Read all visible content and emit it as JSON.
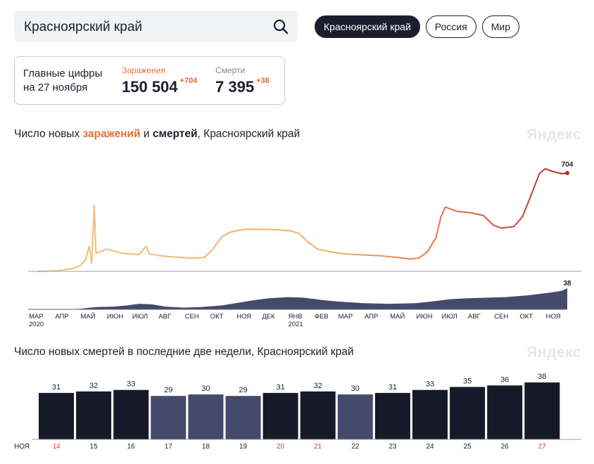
{
  "search": {
    "value": "Красноярский край"
  },
  "chips": [
    {
      "label": "Красноярский край",
      "active": true
    },
    {
      "label": "Россия",
      "active": false
    },
    {
      "label": "Мир",
      "active": false
    }
  ],
  "summary": {
    "line1": "Главные цифры",
    "line2": "на 27 ноября",
    "infections": {
      "caption": "Заражения",
      "value": "150 504",
      "delta": "+704"
    },
    "deaths": {
      "caption": "Смерти",
      "value": "7 395",
      "delta": "+38"
    }
  },
  "chart1": {
    "title_prefix": "Число новых ",
    "title_inf": "заражений",
    "title_mid": " и ",
    "title_deaths": "смертей",
    "title_suffix": ", Красноярский край",
    "watermark": "Яндекс"
  },
  "chart2": {
    "title": "Число новых смертей в последние две недели, Красноярский край",
    "watermark": "Яндекс"
  },
  "chart_data": [
    {
      "type": "area",
      "series": [
        {
          "name": "заражений",
          "color_start": "#f3c27c",
          "color_end": "#b0302a",
          "last_label": "704",
          "points": [
            [
              "2020-03-12",
              0
            ],
            [
              "2020-03-25",
              2
            ],
            [
              "2020-04-05",
              5
            ],
            [
              "2020-04-15",
              14
            ],
            [
              "2020-04-22",
              20
            ],
            [
              "2020-05-01",
              40
            ],
            [
              "2020-05-08",
              85
            ],
            [
              "2020-05-12",
              180
            ],
            [
              "2020-05-15",
              60
            ],
            [
              "2020-05-18",
              470
            ],
            [
              "2020-05-20",
              130
            ],
            [
              "2020-05-25",
              140
            ],
            [
              "2020-06-01",
              160
            ],
            [
              "2020-06-10",
              145
            ],
            [
              "2020-06-20",
              130
            ],
            [
              "2020-07-01",
              125
            ],
            [
              "2020-07-10",
              120
            ],
            [
              "2020-07-18",
              180
            ],
            [
              "2020-07-22",
              125
            ],
            [
              "2020-08-01",
              115
            ],
            [
              "2020-08-15",
              105
            ],
            [
              "2020-09-01",
              98
            ],
            [
              "2020-09-15",
              95
            ],
            [
              "2020-09-25",
              100
            ],
            [
              "2020-10-05",
              160
            ],
            [
              "2020-10-15",
              245
            ],
            [
              "2020-10-25",
              280
            ],
            [
              "2020-11-10",
              300
            ],
            [
              "2020-11-25",
              302
            ],
            [
              "2020-12-10",
              300
            ],
            [
              "2020-12-25",
              295
            ],
            [
              "2021-01-05",
              290
            ],
            [
              "2021-01-15",
              270
            ],
            [
              "2021-01-25",
              210
            ],
            [
              "2021-02-05",
              160
            ],
            [
              "2021-02-20",
              140
            ],
            [
              "2021-03-10",
              125
            ],
            [
              "2021-04-01",
              118
            ],
            [
              "2021-04-20",
              112
            ],
            [
              "2021-05-10",
              100
            ],
            [
              "2021-05-25",
              88
            ],
            [
              "2021-06-05",
              95
            ],
            [
              "2021-06-15",
              140
            ],
            [
              "2021-06-25",
              240
            ],
            [
              "2021-07-01",
              390
            ],
            [
              "2021-07-06",
              460
            ],
            [
              "2021-07-20",
              430
            ],
            [
              "2021-08-05",
              420
            ],
            [
              "2021-08-20",
              400
            ],
            [
              "2021-09-01",
              330
            ],
            [
              "2021-09-10",
              310
            ],
            [
              "2021-09-25",
              320
            ],
            [
              "2021-10-05",
              390
            ],
            [
              "2021-10-15",
              540
            ],
            [
              "2021-10-25",
              700
            ],
            [
              "2021-11-01",
              735
            ],
            [
              "2021-11-10",
              715
            ],
            [
              "2021-11-20",
              700
            ],
            [
              "2021-11-27",
              704
            ]
          ]
        },
        {
          "name": "смертей",
          "color": "#454a6b",
          "last_label": "38",
          "points": [
            [
              "2020-03-12",
              0
            ],
            [
              "2020-04-15",
              0
            ],
            [
              "2020-05-01",
              1
            ],
            [
              "2020-05-20",
              4
            ],
            [
              "2020-06-10",
              5
            ],
            [
              "2020-06-25",
              7
            ],
            [
              "2020-07-10",
              10
            ],
            [
              "2020-07-25",
              9
            ],
            [
              "2020-08-10",
              5
            ],
            [
              "2020-09-01",
              3
            ],
            [
              "2020-09-20",
              4
            ],
            [
              "2020-10-15",
              7
            ],
            [
              "2020-11-01",
              11
            ],
            [
              "2020-11-20",
              16
            ],
            [
              "2020-12-10",
              20
            ],
            [
              "2021-01-01",
              22
            ],
            [
              "2021-01-20",
              21
            ],
            [
              "2021-02-10",
              17
            ],
            [
              "2021-03-01",
              14
            ],
            [
              "2021-04-01",
              11
            ],
            [
              "2021-05-01",
              10
            ],
            [
              "2021-06-01",
              11
            ],
            [
              "2021-06-20",
              14
            ],
            [
              "2021-07-10",
              18
            ],
            [
              "2021-08-01",
              20
            ],
            [
              "2021-08-25",
              21
            ],
            [
              "2021-09-15",
              22
            ],
            [
              "2021-10-10",
              25
            ],
            [
              "2021-11-01",
              29
            ],
            [
              "2021-11-20",
              33
            ],
            [
              "2021-11-27",
              38
            ]
          ]
        }
      ],
      "x_ticks": [
        "МАР\n2020",
        "АПР",
        "МАЙ",
        "ИЮН",
        "ИЮЛ",
        "АВГ",
        "СЕН",
        "ОКТ",
        "НОЯ",
        "ДЕК",
        "ЯНВ\n2021",
        "ФЕВ",
        "МАР",
        "АПР",
        "МАЙ",
        "ИЮН",
        "ИЮЛ",
        "АВГ",
        "СЕН",
        "ОКТ",
        "НОЯ"
      ],
      "x_range": [
        "2020-03-01",
        "2021-11-27"
      ],
      "legend": "in-title"
    },
    {
      "type": "bar",
      "month_label": "НОЯ",
      "categories": [
        "14",
        "15",
        "16",
        "17",
        "18",
        "19",
        "20",
        "21",
        "22",
        "23",
        "24",
        "25",
        "26",
        "27"
      ],
      "values": [
        31,
        32,
        33,
        29,
        30,
        29,
        31,
        32,
        30,
        31,
        33,
        35,
        36,
        38
      ],
      "weekend": [
        true,
        false,
        false,
        false,
        false,
        false,
        true,
        true,
        false,
        false,
        false,
        false,
        false,
        true
      ],
      "highlight": [
        true,
        true,
        true,
        false,
        false,
        false,
        true,
        true,
        false,
        true,
        true,
        true,
        true,
        true
      ],
      "colors": {
        "bar": "#161a28",
        "bar_muted": "#454a6b",
        "weekend_label": "#e0382e",
        "label": "#1b1e2e"
      }
    }
  ]
}
